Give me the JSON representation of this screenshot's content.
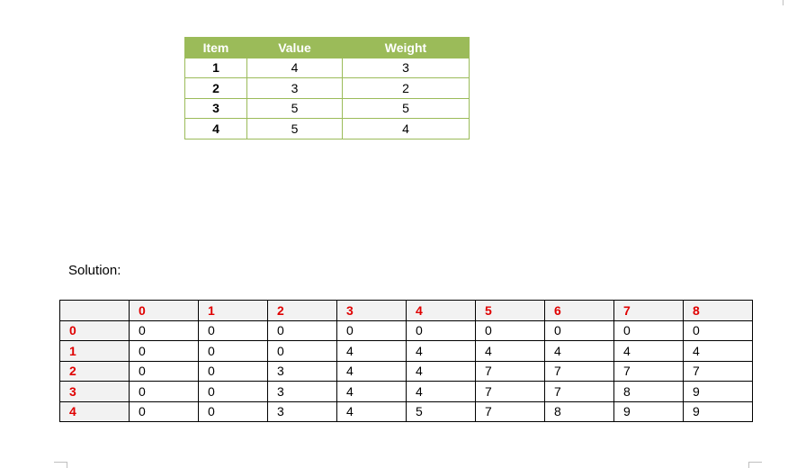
{
  "items_table": {
    "headers": [
      "Item",
      "Value",
      "Weight"
    ],
    "rows": [
      [
        "1",
        "4",
        "3"
      ],
      [
        "2",
        "3",
        "2"
      ],
      [
        "3",
        "5",
        "5"
      ],
      [
        "4",
        "5",
        "4"
      ]
    ],
    "header_color": "#9bbb59"
  },
  "solution_label": "Solution:",
  "dp_table": {
    "column_headers": [
      "0",
      "1",
      "2",
      "3",
      "4",
      "5",
      "6",
      "7",
      "8"
    ],
    "row_headers": [
      "0",
      "1",
      "2",
      "3",
      "4"
    ],
    "rows": [
      [
        "0",
        "0",
        "0",
        "0",
        "0",
        "0",
        "0",
        "0",
        "0"
      ],
      [
        "0",
        "0",
        "0",
        "4",
        "4",
        "4",
        "4",
        "4",
        "4"
      ],
      [
        "0",
        "0",
        "3",
        "4",
        "4",
        "7",
        "7",
        "7",
        "7"
      ],
      [
        "0",
        "0",
        "3",
        "4",
        "4",
        "7",
        "7",
        "8",
        "9"
      ],
      [
        "0",
        "0",
        "3",
        "4",
        "5",
        "7",
        "8",
        "9",
        "9"
      ]
    ],
    "header_text_color": "#e00000"
  }
}
